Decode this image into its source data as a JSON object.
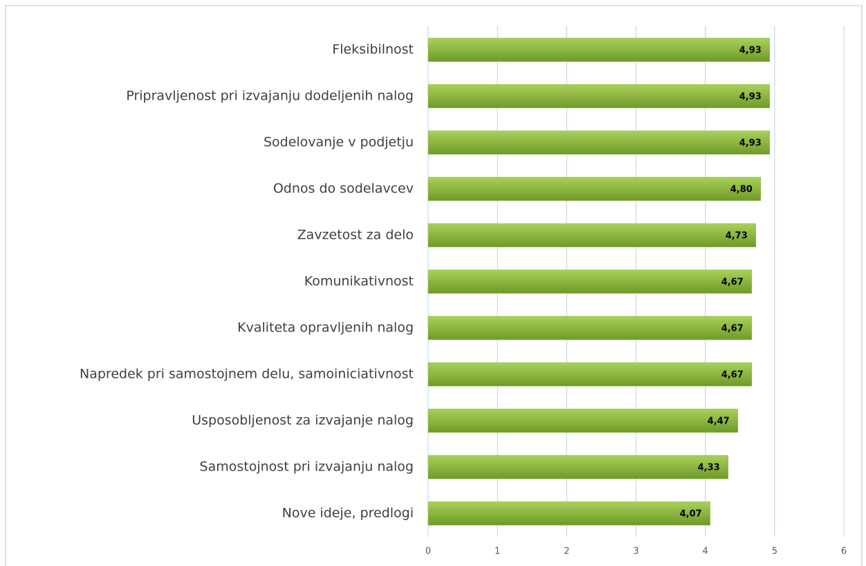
{
  "chart_data": {
    "type": "barh",
    "categories": [
      "Fleksibilnost",
      "Pripravljenost pri izvajanju dodeljenih nalog",
      "Sodelovanje v podjetju",
      "Odnos do sodelavcev",
      "Zavzetost za delo",
      "Komunikativnost",
      "Kvaliteta opravljenih nalog",
      "Napredek pri samostojnem delu, samoiniciativnost",
      "Usposobljenost za izvajanje nalog",
      "Samostojnost pri izvajanju nalog",
      "Nove ideje, predlogi"
    ],
    "values": [
      4.93,
      4.93,
      4.93,
      4.8,
      4.73,
      4.67,
      4.67,
      4.67,
      4.47,
      4.33,
      4.07
    ],
    "value_labels": [
      "4,93",
      "4,93",
      "4,93",
      "4,80",
      "4,73",
      "4,67",
      "4,67",
      "4,67",
      "4,47",
      "4,33",
      "4,07"
    ],
    "color": "#8dbb3c",
    "xlim": [
      0,
      6
    ],
    "xticks": [
      0,
      1,
      2,
      3,
      4,
      5,
      6
    ],
    "grid": true
  }
}
